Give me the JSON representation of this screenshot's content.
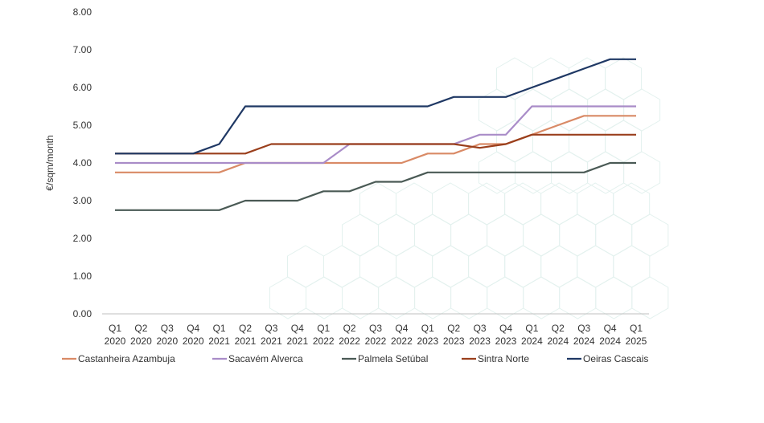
{
  "chart_data": {
    "type": "line",
    "title": "",
    "xlabel": "",
    "ylabel": "€/sqm/month",
    "ylim": [
      0,
      8
    ],
    "yticks": [
      "0.00",
      "1.00",
      "2.00",
      "3.00",
      "4.00",
      "5.00",
      "6.00",
      "7.00",
      "8.00"
    ],
    "grid": false,
    "legend_position": "bottom",
    "categories": [
      [
        "Q1",
        "2020"
      ],
      [
        "Q2",
        "2020"
      ],
      [
        "Q3",
        "2020"
      ],
      [
        "Q4",
        "2020"
      ],
      [
        "Q1",
        "2021"
      ],
      [
        "Q2",
        "2021"
      ],
      [
        "Q3",
        "2021"
      ],
      [
        "Q4",
        "2021"
      ],
      [
        "Q1",
        "2022"
      ],
      [
        "Q2",
        "2022"
      ],
      [
        "Q3",
        "2022"
      ],
      [
        "Q4",
        "2022"
      ],
      [
        "Q1",
        "2023"
      ],
      [
        "Q2",
        "2023"
      ],
      [
        "Q3",
        "2023"
      ],
      [
        "Q4",
        "2023"
      ],
      [
        "Q1",
        "2024"
      ],
      [
        "Q2",
        "2024"
      ],
      [
        "Q3",
        "2024"
      ],
      [
        "Q4",
        "2024"
      ],
      [
        "Q1",
        "2025"
      ]
    ],
    "series": [
      {
        "name": "Castanheira Azambuja",
        "color": "#d98a66",
        "values": [
          3.75,
          3.75,
          3.75,
          3.75,
          3.75,
          4.0,
          4.0,
          4.0,
          4.0,
          4.0,
          4.0,
          4.0,
          4.25,
          4.25,
          4.5,
          4.5,
          4.75,
          5.0,
          5.25,
          5.25,
          5.25
        ]
      },
      {
        "name": "Sacavém Alverca",
        "color": "#a98cc8",
        "values": [
          4.0,
          4.0,
          4.0,
          4.0,
          4.0,
          4.0,
          4.0,
          4.0,
          4.0,
          4.5,
          4.5,
          4.5,
          4.5,
          4.5,
          4.75,
          4.75,
          5.5,
          5.5,
          5.5,
          5.5,
          5.5
        ]
      },
      {
        "name": "Palmela Setúbal",
        "color": "#4a5a55",
        "values": [
          2.75,
          2.75,
          2.75,
          2.75,
          2.75,
          3.0,
          3.0,
          3.0,
          3.25,
          3.25,
          3.5,
          3.5,
          3.75,
          3.75,
          3.75,
          3.75,
          3.75,
          3.75,
          3.75,
          4.0,
          4.0
        ]
      },
      {
        "name": "Sintra Norte",
        "color": "#9a3f1c",
        "values": [
          4.25,
          4.25,
          4.25,
          4.25,
          4.25,
          4.25,
          4.5,
          4.5,
          4.5,
          4.5,
          4.5,
          4.5,
          4.5,
          4.5,
          4.4,
          4.5,
          4.75,
          4.75,
          4.75,
          4.75,
          4.75
        ]
      },
      {
        "name": "Oeiras Cascais",
        "color": "#1f3864",
        "values": [
          4.25,
          4.25,
          4.25,
          4.25,
          4.5,
          5.5,
          5.5,
          5.5,
          5.5,
          5.5,
          5.5,
          5.5,
          5.5,
          5.75,
          5.75,
          5.75,
          6.0,
          6.25,
          6.5,
          6.75,
          6.75
        ]
      }
    ]
  }
}
